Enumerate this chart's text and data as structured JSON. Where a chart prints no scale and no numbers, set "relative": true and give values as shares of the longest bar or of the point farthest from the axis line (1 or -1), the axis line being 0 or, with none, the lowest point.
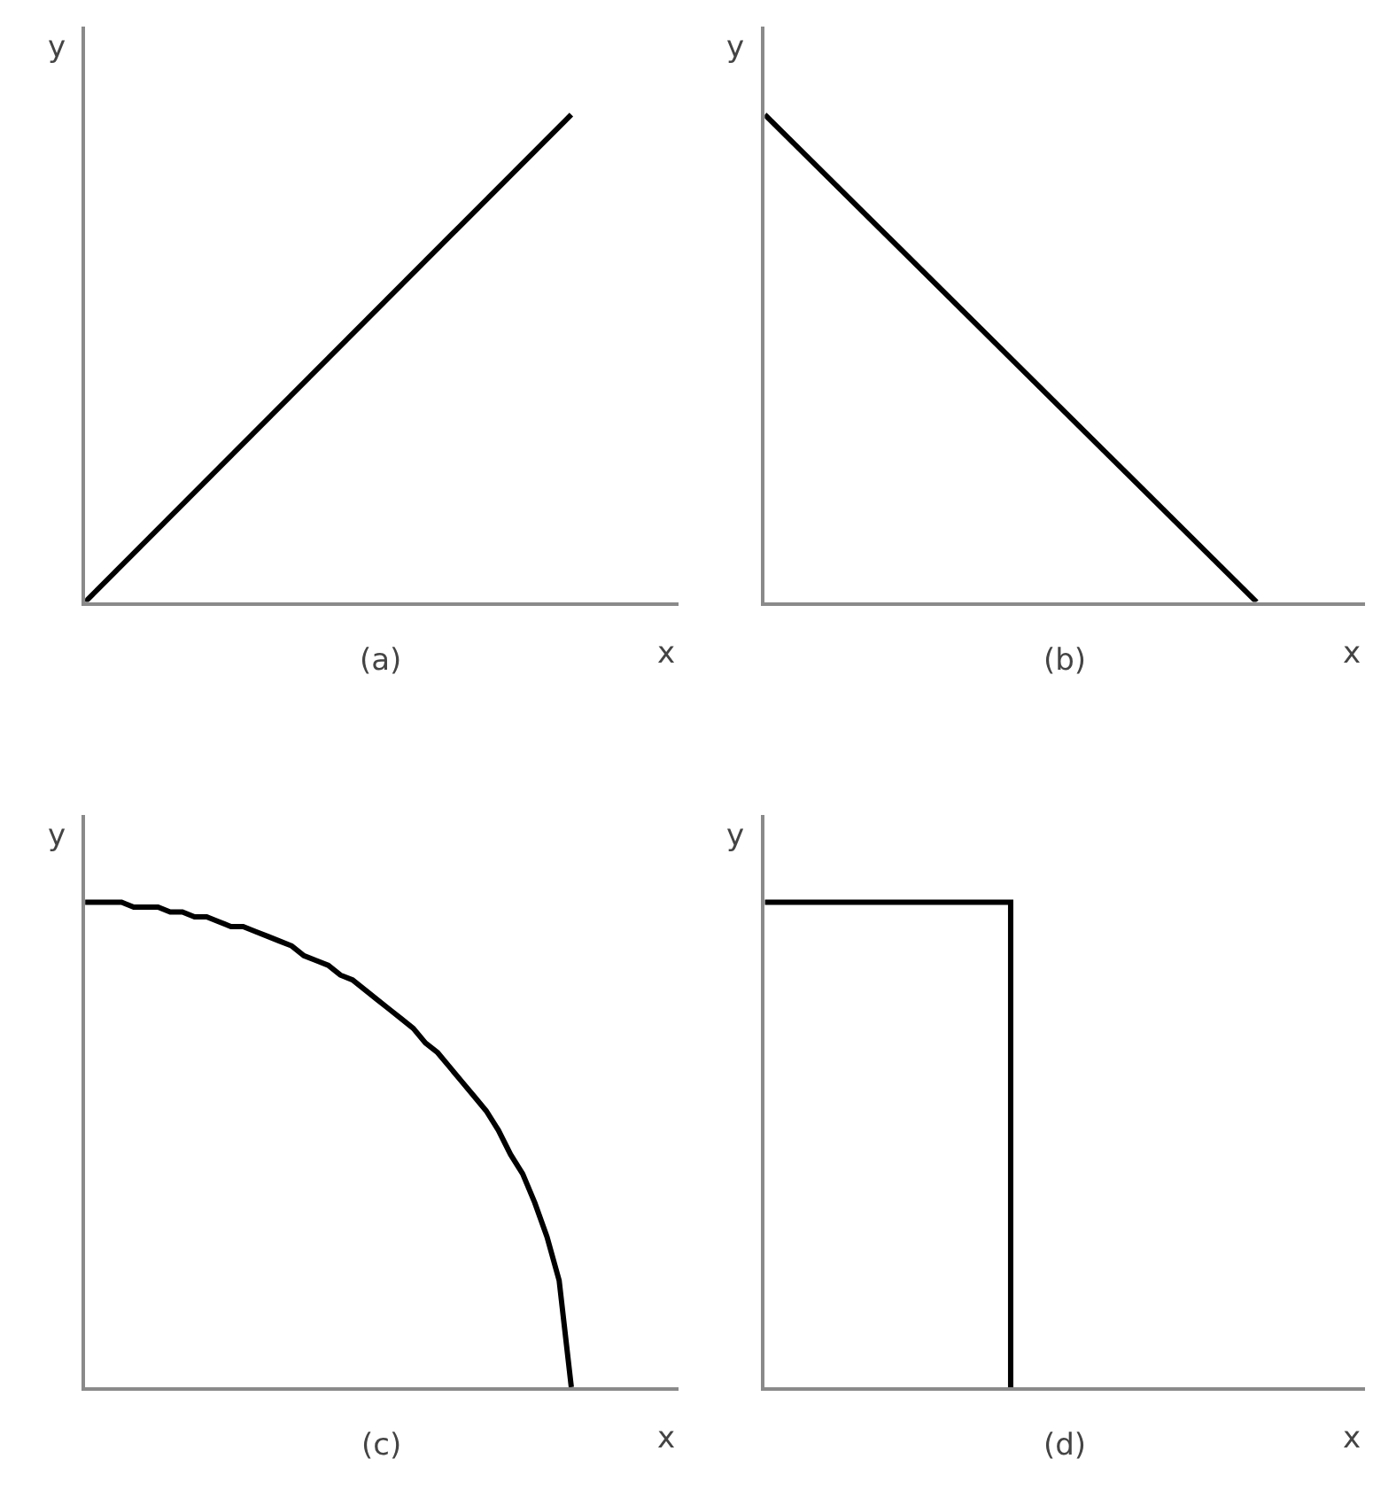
{
  "chart_data": [
    {
      "type": "line",
      "title": "(a)",
      "xlabel": "x",
      "ylabel": "y",
      "relative": true,
      "categories": [
        null,
        null
      ],
      "series": [
        {
          "color": "#000000",
          "values": [
            0,
            1
          ]
        }
      ]
    },
    {
      "type": "line",
      "title": "(b)",
      "xlabel": "x",
      "ylabel": "y",
      "relative": true,
      "categories": [
        null,
        null
      ],
      "series": [
        {
          "color": "#000000",
          "values": [
            1,
            0
          ]
        }
      ]
    },
    {
      "type": "line",
      "title": "(c)",
      "xlabel": "x",
      "ylabel": "y",
      "relative": true,
      "categories": [
        null,
        null,
        null,
        null,
        null,
        null,
        null,
        null,
        null,
        null,
        null,
        null,
        null,
        null,
        null,
        null,
        null,
        null,
        null,
        null,
        null,
        null,
        null,
        null,
        null,
        null,
        null,
        null,
        null,
        null,
        null,
        null,
        null,
        null,
        null,
        null,
        null,
        null,
        null,
        null,
        null
      ],
      "series": [
        {
          "color": "#000000",
          "values": [
            1,
            1,
            1,
            1,
            0.99,
            0.99,
            0.99,
            0.98,
            0.98,
            0.97,
            0.97,
            0.96,
            0.95,
            0.95,
            0.94,
            0.93,
            0.92,
            0.91,
            0.89,
            0.88,
            0.87,
            0.85,
            0.84,
            0.82,
            0.8,
            0.78,
            0.76,
            0.74,
            0.71,
            0.69,
            0.66,
            0.63,
            0.6,
            0.57,
            0.53,
            0.48,
            0.44,
            0.38,
            0.31,
            0.22,
            0
          ]
        }
      ]
    },
    {
      "type": "step",
      "title": "(d)",
      "xlabel": "x",
      "ylabel": "y",
      "relative": true,
      "categories": [
        null,
        null,
        null
      ],
      "series": [
        {
          "color": "#000000",
          "values": [
            1,
            0,
            null
          ]
        }
      ]
    }
  ]
}
